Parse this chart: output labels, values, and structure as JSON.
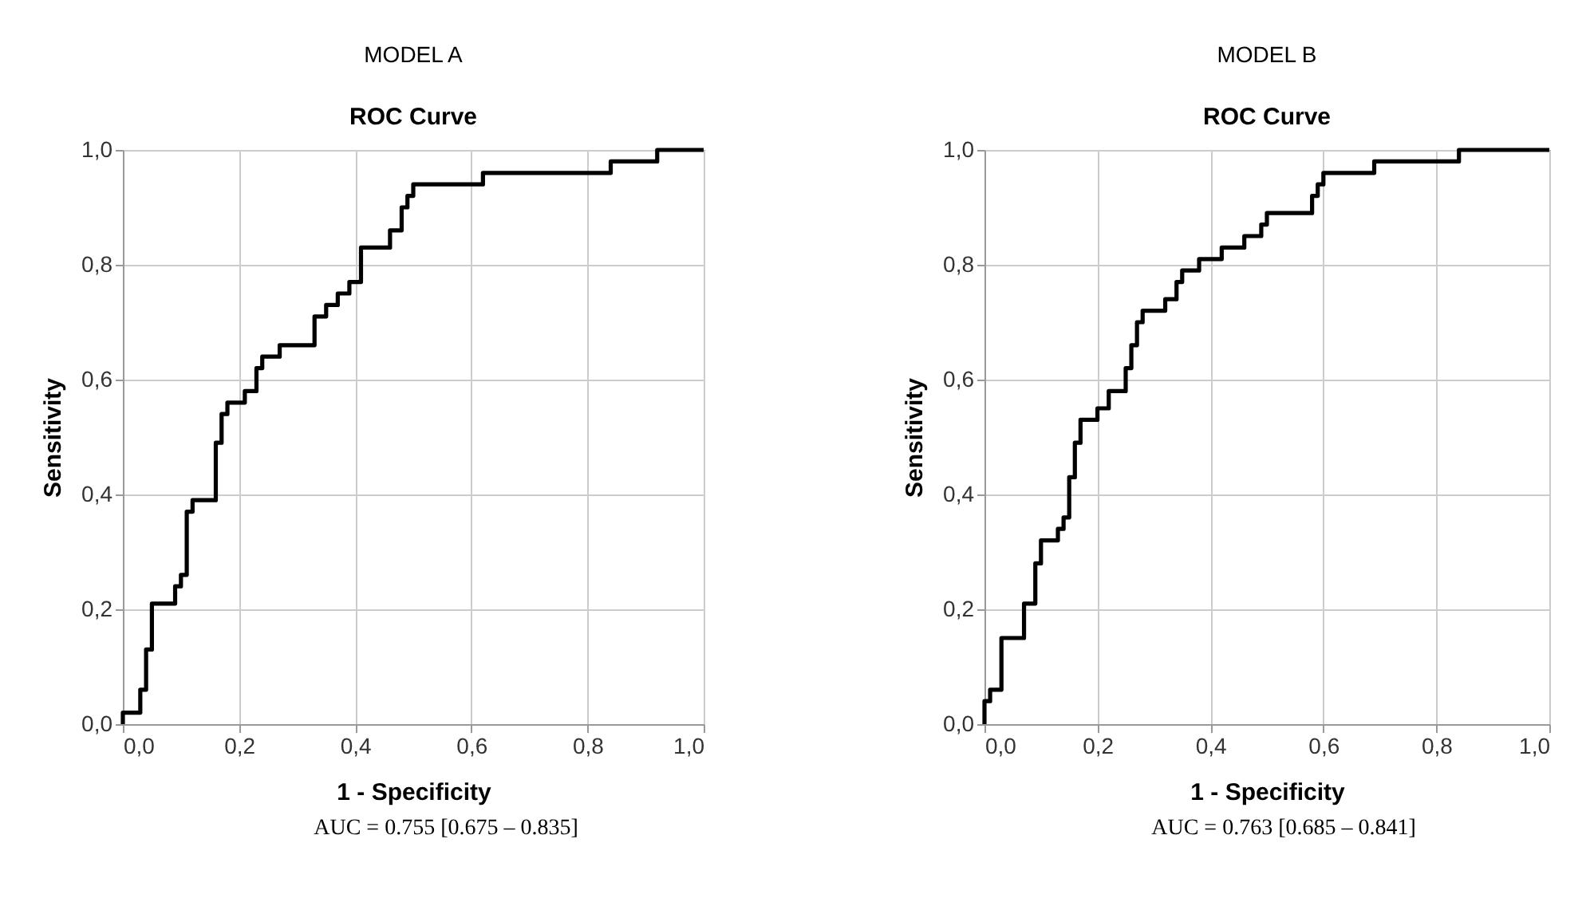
{
  "chart_data": [
    {
      "type": "step",
      "title": "MODEL A",
      "subtitle": "ROC Curve",
      "xlabel": "1 - Specificity",
      "ylabel": "Sensitivity",
      "xlim": [
        0,
        1
      ],
      "ylim": [
        0,
        1
      ],
      "xticks": [
        {
          "value": 0,
          "label": "0,0"
        },
        {
          "value": 0.2,
          "label": "0,2"
        },
        {
          "value": 0.4,
          "label": "0,4"
        },
        {
          "value": 0.6,
          "label": "0,6"
        },
        {
          "value": 0.8,
          "label": "0,8"
        },
        {
          "value": 1,
          "label": "1,0"
        }
      ],
      "yticks": [
        {
          "value": 0,
          "label": "0,0"
        },
        {
          "value": 0.2,
          "label": "0,2"
        },
        {
          "value": 0.4,
          "label": "0,4"
        },
        {
          "value": 0.6,
          "label": "0,6"
        },
        {
          "value": 0.8,
          "label": "0,8"
        },
        {
          "value": 1,
          "label": "1,0"
        }
      ],
      "grid": true,
      "line_style": "solid",
      "marker": "none",
      "series": [
        {
          "color": "#000000",
          "x": [
            0,
            0,
            0.03,
            0.04,
            0.05,
            0.09,
            0.1,
            0.11,
            0.12,
            0.16,
            0.17,
            0.18,
            0.21,
            0.23,
            0.24,
            0.27,
            0.33,
            0.35,
            0.37,
            0.39,
            0.41,
            0.46,
            0.48,
            0.49,
            0.5,
            0.62,
            0.84,
            0.92,
            1
          ],
          "values": [
            0,
            0.02,
            0.06,
            0.13,
            0.21,
            0.24,
            0.26,
            0.37,
            0.39,
            0.49,
            0.54,
            0.56,
            0.58,
            0.62,
            0.64,
            0.66,
            0.71,
            0.73,
            0.75,
            0.77,
            0.83,
            0.86,
            0.9,
            0.92,
            0.94,
            0.96,
            0.98,
            1,
            1
          ]
        }
      ],
      "annotations": [
        "AUC = 0.755 [0.675 – 0.835]"
      ]
    },
    {
      "type": "step",
      "title": "MODEL B",
      "subtitle": "ROC Curve",
      "xlabel": "1 - Specificity",
      "ylabel": "Sensitivity",
      "xlim": [
        0,
        1
      ],
      "ylim": [
        0,
        1
      ],
      "xticks": [
        {
          "value": 0,
          "label": "0,0"
        },
        {
          "value": 0.2,
          "label": "0,2"
        },
        {
          "value": 0.4,
          "label": "0,4"
        },
        {
          "value": 0.6,
          "label": "0,6"
        },
        {
          "value": 0.8,
          "label": "0,8"
        },
        {
          "value": 1,
          "label": "1,0"
        }
      ],
      "yticks": [
        {
          "value": 0,
          "label": "0,0"
        },
        {
          "value": 0.2,
          "label": "0,2"
        },
        {
          "value": 0.4,
          "label": "0,4"
        },
        {
          "value": 0.6,
          "label": "0,6"
        },
        {
          "value": 0.8,
          "label": "0,8"
        },
        {
          "value": 1,
          "label": "1,0"
        }
      ],
      "grid": true,
      "line_style": "solid",
      "marker": "none",
      "series": [
        {
          "color": "#000000",
          "x": [
            0,
            0,
            0.01,
            0.03,
            0.07,
            0.09,
            0.1,
            0.13,
            0.14,
            0.15,
            0.16,
            0.17,
            0.2,
            0.22,
            0.25,
            0.26,
            0.27,
            0.28,
            0.32,
            0.34,
            0.35,
            0.38,
            0.42,
            0.46,
            0.49,
            0.5,
            0.58,
            0.59,
            0.6,
            0.69,
            0.84,
            1
          ],
          "values": [
            0,
            0.04,
            0.06,
            0.15,
            0.21,
            0.28,
            0.32,
            0.34,
            0.36,
            0.43,
            0.49,
            0.53,
            0.55,
            0.58,
            0.62,
            0.66,
            0.7,
            0.72,
            0.74,
            0.77,
            0.79,
            0.81,
            0.83,
            0.85,
            0.87,
            0.89,
            0.92,
            0.94,
            0.96,
            0.98,
            1,
            1
          ]
        }
      ],
      "annotations": [
        "AUC = 0.763 [0.685 – 0.841]"
      ]
    }
  ]
}
